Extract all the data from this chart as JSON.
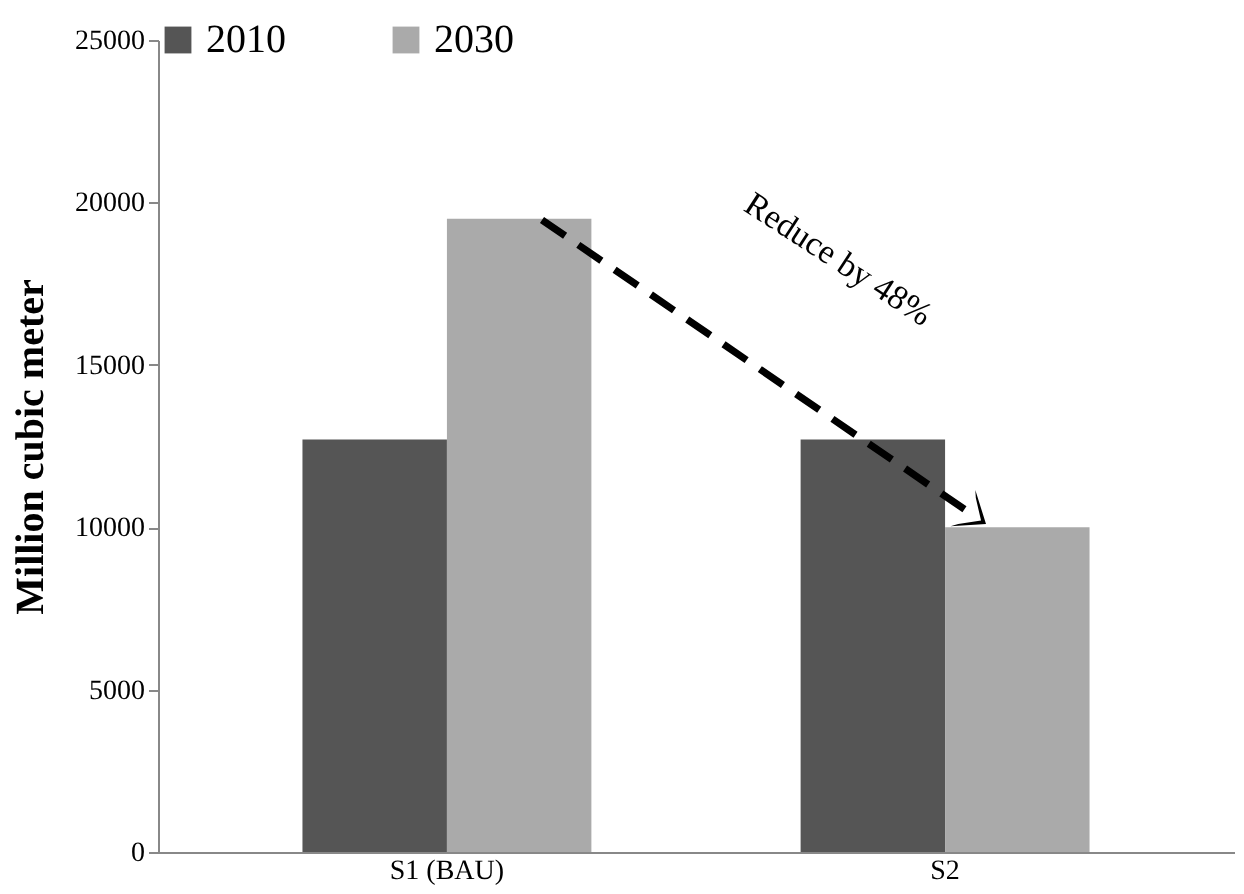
{
  "chart_data": {
    "type": "bar",
    "categories": [
      "S1 (BAU)",
      "S2"
    ],
    "ylabel": "Million cubic meter",
    "series": [
      {
        "name": "2010",
        "color": "#555555",
        "values": [
          12700,
          12700
        ]
      },
      {
        "name": "2030",
        "color": "#aaaaaa",
        "values": [
          19500,
          10000
        ]
      }
    ],
    "ylim": [
      0,
      25000
    ],
    "yticks": [
      0,
      5000,
      10000,
      15000,
      20000,
      25000
    ],
    "grid": false,
    "legend": "top",
    "annotations": [
      "Reduce by 48%"
    ]
  }
}
